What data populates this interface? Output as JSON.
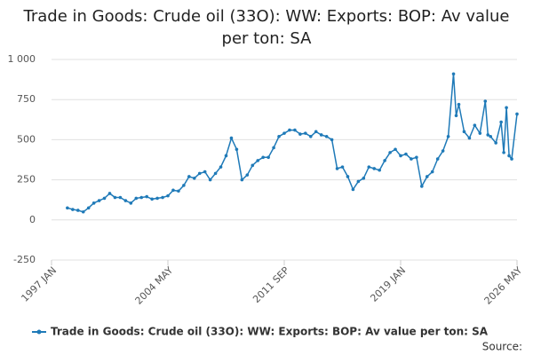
{
  "chart_data": {
    "type": "line",
    "title": "Trade in Goods: Crude oil (33O): WW: Exports: BOP: Av value per ton: SA",
    "source": "Source:",
    "x": [
      "1998 JAN",
      "1998 MAY",
      "1998 SEP",
      "1999 JAN",
      "1999 MAY",
      "1999 SEP",
      "2000 JAN",
      "2000 MAY",
      "2000 SEP",
      "2001 JAN",
      "2001 MAY",
      "2001 SEP",
      "2002 JAN",
      "2002 MAY",
      "2002 SEP",
      "2003 JAN",
      "2003 MAY",
      "2003 SEP",
      "2004 JAN",
      "2004 MAY",
      "2004 SEP",
      "2005 JAN",
      "2005 MAY",
      "2005 SEP",
      "2006 JAN",
      "2006 MAY",
      "2006 SEP",
      "2007 JAN",
      "2007 MAY",
      "2007 SEP",
      "2008 JAN",
      "2008 MAY",
      "2008 SEP",
      "2009 JAN",
      "2009 MAY",
      "2009 SEP",
      "2010 JAN",
      "2010 MAY",
      "2010 SEP",
      "2011 JAN",
      "2011 MAY",
      "2011 SEP",
      "2012 JAN",
      "2012 MAY",
      "2012 SEP",
      "2013 JAN",
      "2013 MAY",
      "2013 SEP",
      "2014 JAN",
      "2014 MAY",
      "2014 SEP",
      "2015 JAN",
      "2015 MAY",
      "2015 SEP",
      "2016 JAN",
      "2016 MAY",
      "2016 SEP",
      "2017 JAN",
      "2017 MAY",
      "2017 SEP",
      "2018 JAN",
      "2018 MAY",
      "2018 SEP",
      "2019 JAN",
      "2019 MAY",
      "2019 SEP",
      "2020 JAN",
      "2020 MAY",
      "2020 SEP",
      "2021 JAN",
      "2021 MAY",
      "2021 SEP",
      "2022 JAN",
      "2022 MAY",
      "2022 JUL",
      "2022 SEP",
      "2023 JAN",
      "2023 MAY",
      "2023 SEP",
      "2024 JAN",
      "2024 MAY",
      "2024 JUL",
      "2024 SEP",
      "2025 JAN",
      "2025 MAY",
      "2025 JUL",
      "2025 SEP",
      "2025 NOV",
      "2026 JAN",
      "2026 MAY"
    ],
    "series": [
      {
        "name": "Trade in Goods: Crude oil (33O): WW: Exports: BOP: Av value per ton: SA",
        "color": "#1f7ab8",
        "values": [
          75,
          65,
          60,
          50,
          75,
          105,
          120,
          135,
          165,
          140,
          140,
          120,
          105,
          135,
          140,
          145,
          130,
          135,
          140,
          150,
          185,
          180,
          215,
          270,
          260,
          290,
          300,
          250,
          290,
          330,
          400,
          510,
          440,
          250,
          280,
          340,
          370,
          390,
          390,
          450,
          520,
          540,
          560,
          560,
          535,
          540,
          520,
          550,
          530,
          520,
          500,
          320,
          330,
          270,
          190,
          240,
          260,
          330,
          320,
          310,
          370,
          420,
          440,
          400,
          410,
          380,
          390,
          210,
          270,
          300,
          380,
          430,
          520,
          910,
          650,
          720,
          550,
          510,
          590,
          540,
          740,
          530,
          520,
          480,
          610,
          420,
          700,
          400,
          380,
          660
        ]
      }
    ],
    "xticks": [
      "1997 JAN",
      "2004 MAY",
      "2011 SEP",
      "2019 JAN",
      "2026 MAY"
    ],
    "xlim": [
      "1997 JAN",
      "2026 MAY"
    ],
    "ylim": [
      -250,
      1000
    ],
    "yticks": [
      -250,
      0,
      250,
      500,
      750,
      {
        "value": 1000,
        "label": "1 000"
      }
    ],
    "grid": true
  }
}
